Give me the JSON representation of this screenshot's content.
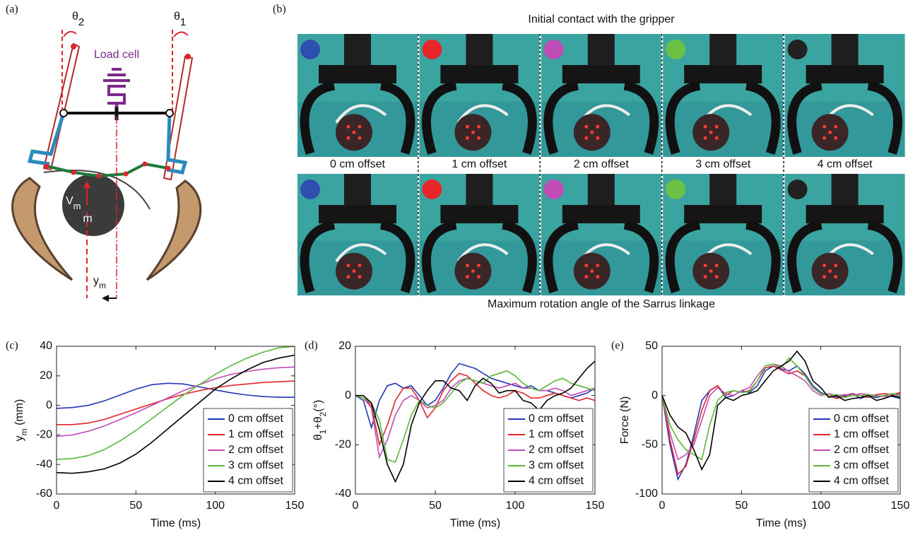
{
  "panel_a": {
    "label": "(a)",
    "theta2": [
      "θ",
      "2"
    ],
    "theta1": [
      "θ",
      "1"
    ],
    "load_cell": "Load cell",
    "velocity": [
      "V",
      "m"
    ],
    "mass": "m",
    "offset": [
      "y",
      "m"
    ]
  },
  "panel_b": {
    "label": "(b)",
    "top_title": "Initial contact with the gripper",
    "bottom_title": "Maximum rotation angle of the Sarrus linkage",
    "captions": [
      "0 cm offset",
      "1 cm offset",
      "2 cm offset",
      "3 cm offset",
      "4 cm offset"
    ]
  },
  "chart_data": [
    {
      "type": "line",
      "panel_label": "(c)",
      "xlabel": "Time (ms)",
      "ylabel": [
        "y",
        "m",
        " (mm)"
      ],
      "xlim": [
        0,
        150
      ],
      "xticks": [
        0,
        50,
        100,
        150
      ],
      "ylim": [
        -60,
        40
      ],
      "yticks": [
        -60,
        -40,
        -20,
        0,
        20,
        40
      ],
      "legend": "lower right",
      "box": true,
      "x": [
        0,
        10,
        20,
        30,
        40,
        50,
        60,
        70,
        80,
        90,
        100,
        110,
        120,
        130,
        140,
        150
      ],
      "series": [
        {
          "name": "0 cm offset",
          "color": "#2339b8",
          "values": [
            -2,
            -1.5,
            0,
            3,
            7,
            11,
            14,
            15,
            14.5,
            12.5,
            10.5,
            8.5,
            7,
            6,
            5.5,
            5.5
          ]
        },
        {
          "name": "1 cm offset",
          "color": "#e3242b",
          "values": [
            -13,
            -13,
            -12,
            -9.5,
            -6,
            -2.5,
            1,
            4.5,
            7.5,
            10,
            12,
            13.5,
            14.5,
            15.5,
            16,
            16.5
          ]
        },
        {
          "name": "2 cm offset",
          "color": "#c04db5",
          "values": [
            -21,
            -20,
            -17.5,
            -14,
            -9.5,
            -5,
            0,
            5,
            10,
            14,
            18,
            21,
            23,
            24.5,
            25.5,
            26
          ]
        },
        {
          "name": "3 cm offset",
          "color": "#5bb83a",
          "values": [
            -36.5,
            -36,
            -34,
            -30,
            -24,
            -17,
            -9,
            -1,
            7,
            14,
            21,
            27,
            32,
            36,
            39,
            40
          ]
        },
        {
          "name": "4 cm offset",
          "color": "#000000",
          "values": [
            -45.5,
            -46,
            -45,
            -43,
            -39,
            -33,
            -25,
            -16,
            -7,
            2,
            11,
            18,
            24,
            29,
            32,
            34
          ]
        }
      ]
    },
    {
      "type": "line",
      "panel_label": "(d)",
      "xlabel": "Time (ms)",
      "ylabel": [
        "θ",
        "1",
        "+θ",
        "2",
        "(°)"
      ],
      "xlim": [
        0,
        150
      ],
      "xticks": [
        0,
        50,
        100,
        150
      ],
      "ylim": [
        -40,
        20
      ],
      "yticks": [
        -40,
        -20,
        0,
        20
      ],
      "legend": "lower right",
      "box": true,
      "x": [
        0,
        5,
        10,
        15,
        20,
        25,
        30,
        35,
        40,
        45,
        50,
        55,
        60,
        65,
        70,
        75,
        80,
        85,
        90,
        95,
        100,
        105,
        110,
        115,
        120,
        125,
        130,
        135,
        140,
        145,
        150
      ],
      "series": [
        {
          "name": "0 cm offset",
          "color": "#2339b8",
          "values": [
            0,
            -2,
            -13,
            -2,
            4,
            5,
            3,
            4,
            0,
            -4,
            -2,
            3,
            9,
            13,
            12,
            11,
            9,
            7,
            6,
            5,
            4,
            3,
            4,
            2,
            2,
            1,
            0,
            -1,
            0,
            1,
            3
          ]
        },
        {
          "name": "1 cm offset",
          "color": "#e3242b",
          "values": [
            0,
            -1,
            -4,
            -20,
            -12,
            -2,
            3,
            3,
            -2,
            -9,
            -5,
            2,
            6,
            9,
            8,
            5,
            2,
            0,
            -1,
            0,
            2,
            1,
            -1,
            -1,
            0,
            1,
            0,
            -1,
            -2,
            -1,
            -2
          ]
        },
        {
          "name": "2 cm offset",
          "color": "#c04db5",
          "values": [
            0,
            -1,
            -5,
            -25,
            -18,
            -8,
            -2,
            0,
            -2,
            -5,
            -4,
            -2,
            3,
            6,
            7,
            6,
            5,
            4,
            3,
            4,
            5,
            3,
            3,
            2,
            2,
            3,
            2,
            0,
            1,
            2,
            3
          ]
        },
        {
          "name": "3 cm offset",
          "color": "#5bb83a",
          "values": [
            0,
            -1,
            -3,
            -10,
            -26,
            -27,
            -18,
            -8,
            -2,
            -4,
            -5,
            -3,
            1,
            5,
            7,
            6,
            5,
            8,
            9,
            10,
            8,
            5,
            3,
            2,
            4,
            6,
            7,
            5,
            4,
            3,
            2
          ]
        },
        {
          "name": "4 cm offset",
          "color": "#000000",
          "values": [
            0,
            0,
            -3,
            -14,
            -28,
            -35,
            -28,
            -12,
            -3,
            2,
            6,
            6,
            3,
            2,
            -2,
            4,
            7,
            5,
            1,
            2,
            2,
            -2,
            -3,
            -6,
            -2,
            0,
            1,
            3,
            7,
            11,
            14
          ]
        }
      ]
    },
    {
      "type": "line",
      "panel_label": "(e)",
      "xlabel": "Time (ms)",
      "ylabel": [
        "Force (N)"
      ],
      "xlim": [
        0,
        150
      ],
      "xticks": [
        0,
        50,
        100,
        150
      ],
      "ylim": [
        -100,
        50
      ],
      "yticks": [
        -100,
        -50,
        0,
        50
      ],
      "legend": "lower right",
      "box": true,
      "x": [
        0,
        5,
        10,
        15,
        20,
        25,
        30,
        35,
        40,
        45,
        50,
        55,
        60,
        65,
        70,
        75,
        80,
        85,
        90,
        95,
        100,
        105,
        110,
        115,
        120,
        125,
        130,
        135,
        140,
        145,
        150
      ],
      "series": [
        {
          "name": "0 cm offset",
          "color": "#2339b8",
          "values": [
            0,
            -50,
            -85,
            -70,
            -40,
            -5,
            5,
            10,
            -2,
            0,
            5,
            3,
            10,
            25,
            30,
            27,
            25,
            30,
            22,
            10,
            3,
            0,
            -2,
            0,
            2,
            -3,
            0,
            -2,
            0,
            -1,
            -3
          ]
        },
        {
          "name": "1 cm offset",
          "color": "#e3242b",
          "values": [
            0,
            -45,
            -80,
            -72,
            -45,
            -15,
            5,
            10,
            0,
            5,
            3,
            5,
            15,
            28,
            30,
            26,
            22,
            25,
            20,
            8,
            2,
            0,
            -3,
            -1,
            2,
            0,
            -2,
            1,
            2,
            1,
            3
          ]
        },
        {
          "name": "2 cm offset",
          "color": "#c04db5",
          "values": [
            0,
            -38,
            -65,
            -60,
            -50,
            -25,
            0,
            8,
            2,
            0,
            5,
            8,
            20,
            30,
            32,
            30,
            24,
            20,
            15,
            5,
            0,
            2,
            0,
            1,
            0,
            2,
            1,
            0,
            -1,
            0,
            2
          ]
        },
        {
          "name": "3 cm offset",
          "color": "#5bb83a",
          "values": [
            0,
            -30,
            -45,
            -55,
            -60,
            -65,
            -30,
            -5,
            3,
            5,
            3,
            4,
            15,
            30,
            32,
            28,
            38,
            30,
            20,
            8,
            2,
            0,
            1,
            -2,
            0,
            0,
            1,
            -1,
            0,
            2,
            0
          ]
        },
        {
          "name": "4 cm offset",
          "color": "#000000",
          "values": [
            0,
            -20,
            -32,
            -38,
            -55,
            -75,
            -60,
            -10,
            -2,
            -5,
            0,
            2,
            5,
            15,
            25,
            30,
            35,
            45,
            35,
            15,
            8,
            -2,
            0,
            -5,
            -3,
            -2,
            0,
            -5,
            -3,
            0,
            -2
          ]
        }
      ]
    }
  ]
}
